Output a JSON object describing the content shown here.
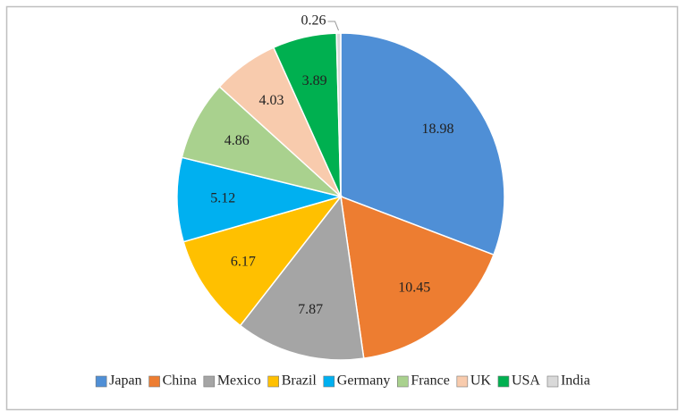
{
  "chart_data": {
    "type": "pie",
    "categories": [
      "Japan",
      "China",
      "Mexico",
      "Brazil",
      "Germany",
      "France",
      "UK",
      "USA",
      "India"
    ],
    "values": [
      18.98,
      10.45,
      7.87,
      6.17,
      5.12,
      4.86,
      4.03,
      3.89,
      0.26
    ],
    "colors": [
      "#4f8fd6",
      "#ed7d31",
      "#a5a5a5",
      "#ffc000",
      "#00b0f0",
      "#a9d18e",
      "#f8cbad",
      "#00b050",
      "#d9d9d9"
    ],
    "legend": "bottom"
  }
}
